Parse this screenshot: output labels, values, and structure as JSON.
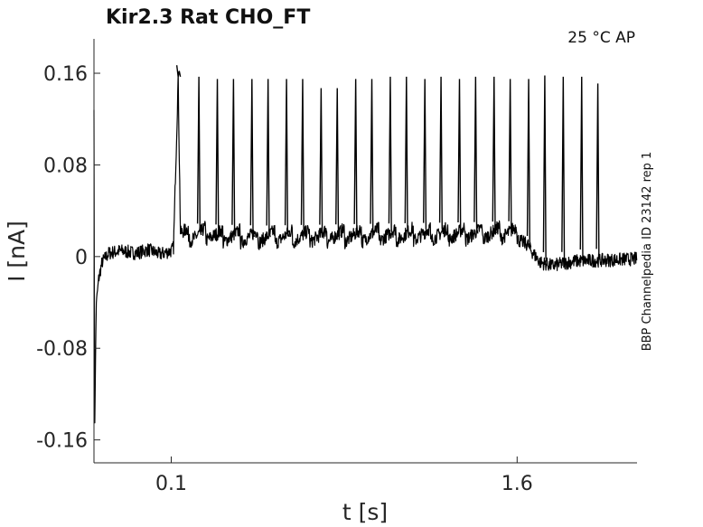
{
  "chart_data": {
    "type": "line",
    "title": "Kir2.3  Rat  CHO_FT",
    "condition_label": "25 °C  AP",
    "side_label": "BBP Channelpedia ID 23142 rep 1",
    "xlabel": "t [s]",
    "ylabel": "I [nA]",
    "xlim": [
      -0.235,
      2.12
    ],
    "ylim": [
      -0.18,
      0.19
    ],
    "x_ticks": [
      0.1,
      1.6
    ],
    "x_tick_labels": [
      "0.1",
      "1.6"
    ],
    "y_ticks": [
      0.16,
      0.08,
      0,
      -0.08,
      -0.16
    ],
    "y_tick_labels": [
      "0.16",
      "0.08",
      "0",
      "-0.08",
      "-0.16"
    ],
    "grid": false,
    "series": [
      {
        "color": "#000000",
        "baseline_current_nA": 0.0,
        "stimulus_window_s": [
          0.1,
          1.6
        ],
        "spike_peak_times_s": [
          0.13,
          0.22,
          0.3,
          0.37,
          0.45,
          0.52,
          0.6,
          0.67,
          0.75,
          0.82,
          0.9,
          0.97,
          1.05,
          1.12,
          1.2,
          1.27,
          1.35,
          1.42,
          1.5,
          1.57,
          1.65,
          1.72,
          1.8,
          1.88,
          1.95
        ],
        "spike_peak_values_nA": [
          0.157,
          0.157,
          0.155,
          0.155,
          0.155,
          0.155,
          0.155,
          0.155,
          0.147,
          0.147,
          0.155,
          0.155,
          0.157,
          0.157,
          0.155,
          0.157,
          0.155,
          0.157,
          0.157,
          0.155,
          0.155,
          0.158,
          0.157,
          0.157,
          0.151
        ],
        "points": [
          [
            -0.235,
            0.13
          ],
          [
            -0.232,
            -0.15
          ],
          [
            -0.225,
            -0.04
          ],
          [
            -0.215,
            -0.02
          ],
          [
            -0.2,
            -0.005
          ],
          [
            -0.17,
            0.003
          ],
          [
            -0.12,
            0.005
          ],
          [
            -0.05,
            0.003
          ],
          [
            0.0,
            0.006
          ],
          [
            0.05,
            0.002
          ],
          [
            0.1,
            0.005
          ],
          [
            0.11,
            0.008
          ],
          [
            0.13,
            0.157
          ],
          [
            0.14,
            0.02
          ],
          [
            0.2,
            0.018
          ],
          [
            0.25,
            0.02
          ],
          [
            0.3,
            0.018
          ],
          [
            0.5,
            0.017
          ],
          [
            0.8,
            0.018
          ],
          [
            1.1,
            0.019
          ],
          [
            1.4,
            0.02
          ],
          [
            1.6,
            0.021
          ],
          [
            1.65,
            0.008
          ],
          [
            1.7,
            -0.005
          ],
          [
            1.75,
            -0.008
          ],
          [
            1.85,
            -0.004
          ],
          [
            2.0,
            -0.003
          ],
          [
            2.12,
            -0.002
          ]
        ]
      }
    ]
  }
}
